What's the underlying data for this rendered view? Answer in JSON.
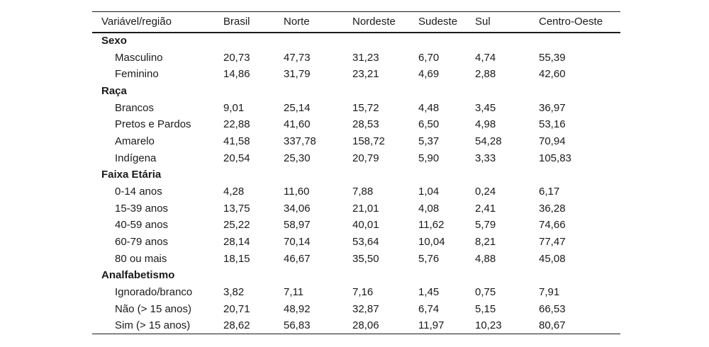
{
  "page": {
    "background_color": "#ffffff",
    "text_color": "#1a1a1a",
    "rule_color": "#1a1a1a"
  },
  "table": {
    "columns": [
      "Variável/região",
      "Brasil",
      "Norte",
      "Nordeste",
      "Sudeste",
      "Sul",
      "Centro-Oeste"
    ],
    "sections": [
      {
        "title": "Sexo",
        "rows": [
          {
            "label": "Masculino",
            "values": [
              "20,73",
              "47,73",
              "31,23",
              "6,70",
              "4,74",
              "55,39"
            ]
          },
          {
            "label": "Feminino",
            "values": [
              "14,86",
              "31,79",
              "23,21",
              "4,69",
              "2,88",
              "42,60"
            ]
          }
        ]
      },
      {
        "title": "Raça",
        "rows": [
          {
            "label": "Brancos",
            "values": [
              "9,01",
              "25,14",
              "15,72",
              "4,48",
              "3,45",
              "36,97"
            ]
          },
          {
            "label": "Pretos e Pardos",
            "values": [
              "22,88",
              "41,60",
              "28,53",
              "6,50",
              "4,98",
              "53,16"
            ]
          },
          {
            "label": "Amarelo",
            "values": [
              "41,58",
              "337,78",
              "158,72",
              "5,37",
              "54,28",
              "70,94"
            ]
          },
          {
            "label": "Indígena",
            "values": [
              "20,54",
              "25,30",
              "20,79",
              "5,90",
              "3,33",
              "105,83"
            ]
          }
        ]
      },
      {
        "title": "Faixa Etária",
        "rows": [
          {
            "label": "0-14 anos",
            "values": [
              "4,28",
              "11,60",
              "7,88",
              "1,04",
              "0,24",
              "6,17"
            ]
          },
          {
            "label": "15-39 anos",
            "values": [
              "13,75",
              "34,06",
              "21,01",
              "4,08",
              "2,41",
              "36,28"
            ]
          },
          {
            "label": "40-59 anos",
            "values": [
              "25,22",
              "58,97",
              "40,01",
              "11,62",
              "5,79",
              "74,66"
            ]
          },
          {
            "label": "60-79 anos",
            "values": [
              "28,14",
              "70,14",
              "53,64",
              "10,04",
              "8,21",
              "77,47"
            ]
          },
          {
            "label": "80 ou mais",
            "values": [
              "18,15",
              "46,67",
              "35,50",
              "5,76",
              "4,88",
              "45,08"
            ]
          }
        ]
      },
      {
        "title": "Analfabetismo",
        "rows": [
          {
            "label": "Ignorado/branco",
            "values": [
              "3,82",
              "7,11",
              "7,16",
              "1,45",
              "0,75",
              "7,91"
            ]
          },
          {
            "label": "Não (> 15 anos)",
            "values": [
              "20,71",
              "48,92",
              "32,87",
              "6,74",
              "5,15",
              "66,53"
            ]
          },
          {
            "label": "Sim (> 15 anos)",
            "values": [
              "28,62",
              "56,83",
              "28,06",
              "11,97",
              "10,23",
              "80,67"
            ]
          }
        ]
      }
    ]
  }
}
